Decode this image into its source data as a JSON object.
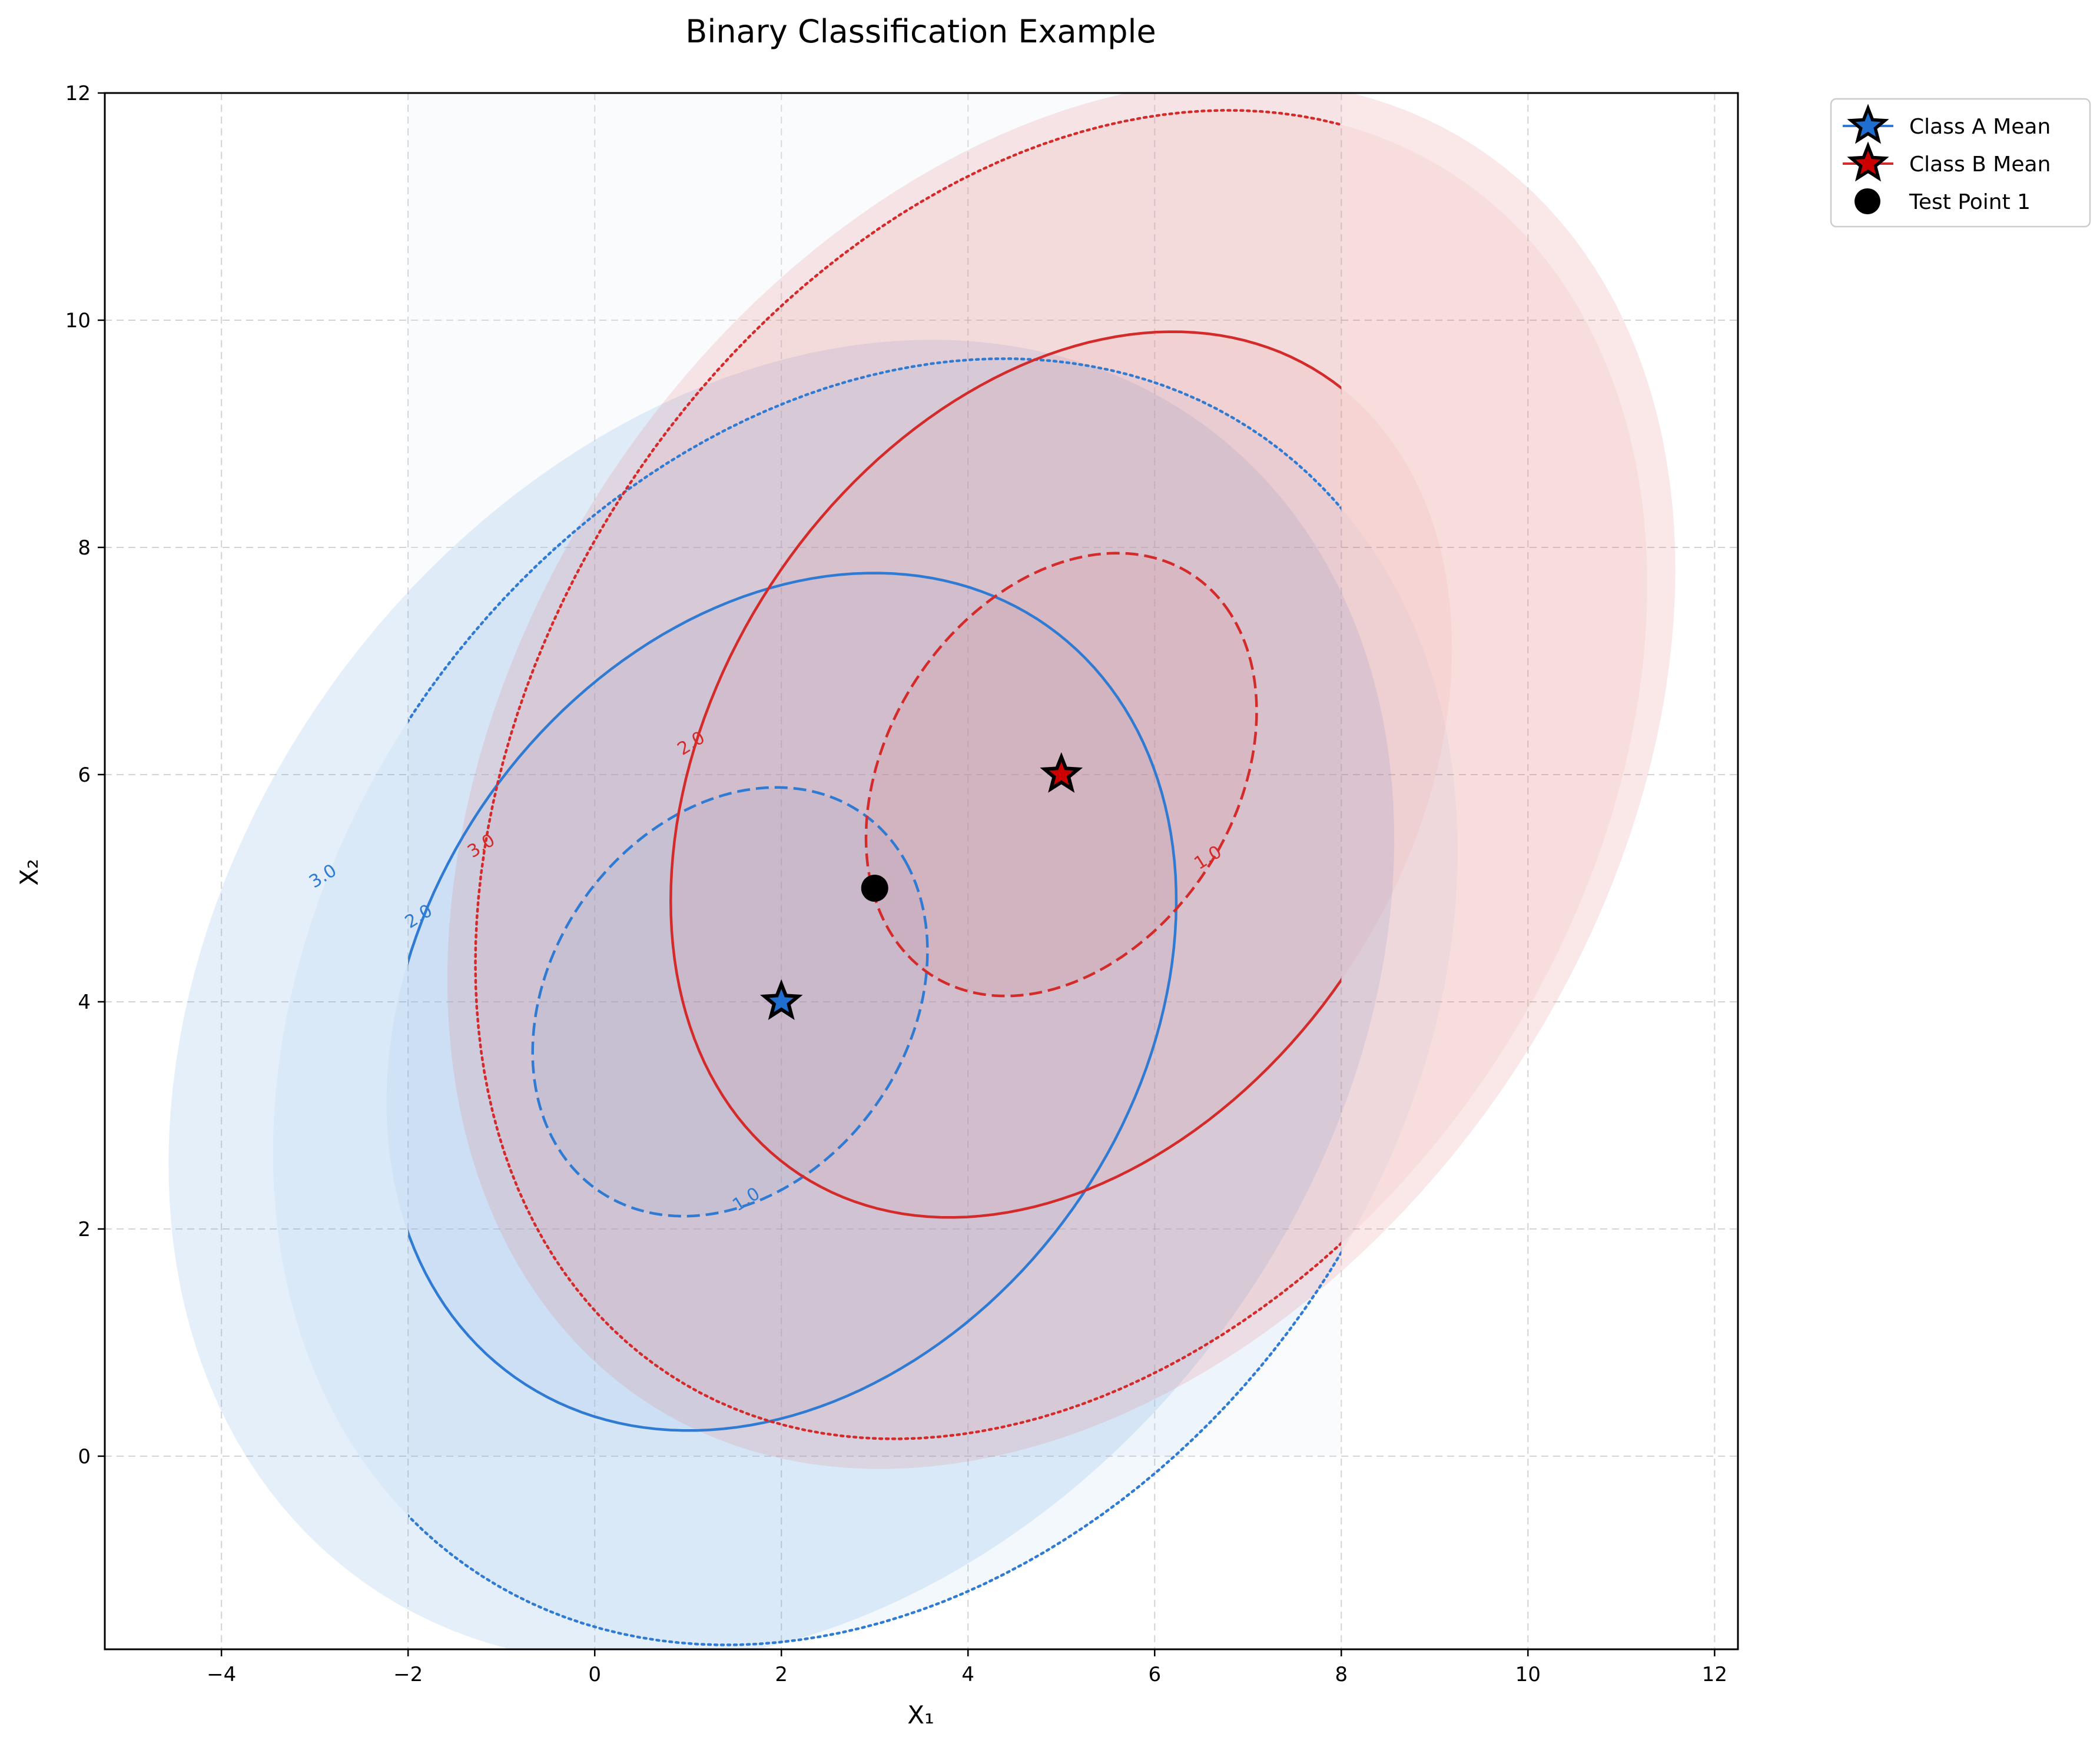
{
  "chart_data": {
    "type": "scatter",
    "title": "Binary Classification Example",
    "xlabel": "X₁",
    "ylabel": "X₂",
    "xlim": [
      -5.25,
      12.25
    ],
    "ylim": [
      -1.7,
      12.0
    ],
    "xticks": [
      -4,
      -2,
      0,
      2,
      4,
      6,
      8,
      10,
      12
    ],
    "yticks": [
      0,
      2,
      4,
      6,
      8,
      10,
      12
    ],
    "xtick_labels": [
      "−4",
      "−2",
      "0",
      "2",
      "4",
      "6",
      "8",
      "10",
      "12"
    ],
    "ytick_labels": [
      "0",
      "2",
      "4",
      "6",
      "8",
      "10",
      "12"
    ],
    "grid": true,
    "legend_position": "outside top-right",
    "colors": {
      "class_a": "#2f7bd3",
      "class_b": "#d42a2a",
      "test": "#000000"
    },
    "points": [
      {
        "name": "Class A Mean",
        "x": 2,
        "y": 4,
        "marker": "star",
        "color": "#1f6fd0"
      },
      {
        "name": "Class B Mean",
        "x": 5,
        "y": 6,
        "marker": "star",
        "color": "#cc0000"
      },
      {
        "name": "Test Point 1",
        "x": 3,
        "y": 5,
        "marker": "circle",
        "color": "#000000"
      }
    ],
    "contours": {
      "class_a": {
        "levels": [
          {
            "level": 1.0,
            "label": "1.0",
            "style": "dashed",
            "center_x": 1.45,
            "center_y": 4.0,
            "width": 4.5,
            "height": 3.45,
            "angle": 32
          },
          {
            "level": 2.0,
            "label": "2.0",
            "style": "solid",
            "center_x": 2.0,
            "center_y": 4.0,
            "width": 9.0,
            "height": 6.9,
            "angle": 32
          },
          {
            "level": 3.0,
            "label": "3.0",
            "style": "dotted",
            "center_x": 2.9,
            "center_y": 4.0,
            "width": 13.5,
            "height": 10.35,
            "angle": 32
          }
        ],
        "fill": {
          "center_x": 2.0,
          "center_y": 4.0,
          "width": 14.0,
          "height": 10.6,
          "angle": 32
        }
      },
      "class_b": {
        "levels": [
          {
            "level": 1.0,
            "label": "1.0",
            "style": "dashed",
            "center_x": 5.0,
            "center_y": 6.0,
            "width": 4.6,
            "height": 3.4,
            "angle": 38
          },
          {
            "level": 2.0,
            "label": "2.0",
            "style": "solid",
            "center_x": 5.0,
            "center_y": 6.0,
            "width": 9.2,
            "height": 6.8,
            "angle": 38
          },
          {
            "level": 3.0,
            "label": "3.0",
            "style": "dotted",
            "center_x": 5.0,
            "center_y": 6.0,
            "width": 13.8,
            "height": 10.2,
            "angle": 38
          }
        ],
        "fill": {
          "center_x": 5.0,
          "center_y": 6.0,
          "width": 14.5,
          "height": 10.6,
          "angle": 38
        }
      }
    }
  },
  "legend": {
    "items": [
      {
        "label": "Class A Mean"
      },
      {
        "label": "Class B Mean"
      },
      {
        "label": "Test Point 1"
      }
    ]
  }
}
